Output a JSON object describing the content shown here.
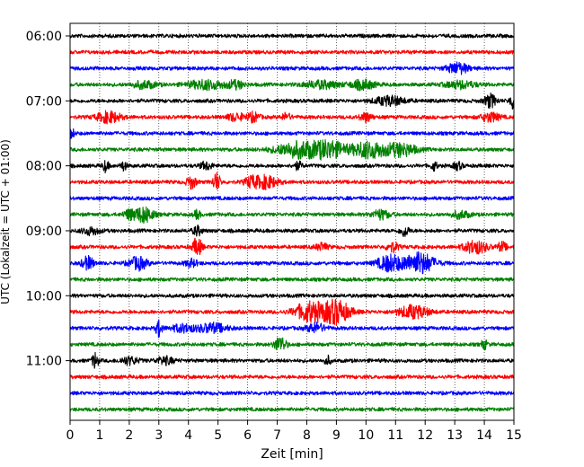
{
  "chart_data": {
    "type": "line",
    "title": "",
    "xlabel": "Zeit  [min]",
    "ylabel": "UTC (Lokalzeit = UTC + 01:00)",
    "xlim": [
      0,
      15
    ],
    "x_ticks": [
      0,
      1,
      2,
      3,
      4,
      5,
      6,
      7,
      8,
      9,
      10,
      11,
      12,
      13,
      14,
      15
    ],
    "x_tick_labels": [
      "0",
      "1",
      "2",
      "3",
      "4",
      "5",
      "6",
      "7",
      "8",
      "9",
      "10",
      "11",
      "12",
      "13",
      "14",
      "15"
    ],
    "y_tick_labels": [
      "06:00",
      "07:00",
      "08:00",
      "09:00",
      "10:00",
      "11:00"
    ],
    "y_tick_rows": [
      0,
      4,
      8,
      12,
      16,
      20
    ],
    "row_count": 24,
    "minutes_per_row": 15,
    "grid": "vertical-dotted",
    "series_colors": [
      "#000000",
      "#ff0000",
      "#0000ff",
      "#008000"
    ],
    "rows": [
      {
        "start": "06:00",
        "color": "#000000",
        "bursts": []
      },
      {
        "start": "06:15",
        "color": "#ff0000",
        "bursts": []
      },
      {
        "start": "06:30",
        "color": "#0000ff",
        "bursts": [
          [
            13.1,
            0.35,
            6
          ]
        ]
      },
      {
        "start": "06:45",
        "color": "#008000",
        "bursts": [
          [
            2.5,
            0.4,
            4
          ],
          [
            4.6,
            0.6,
            5
          ],
          [
            5.6,
            0.3,
            4
          ],
          [
            8.5,
            0.6,
            4
          ],
          [
            9.9,
            0.4,
            5
          ],
          [
            13.2,
            0.5,
            4
          ]
        ]
      },
      {
        "start": "07:00",
        "color": "#000000",
        "bursts": [
          [
            10.8,
            0.5,
            5
          ],
          [
            14.2,
            0.2,
            7
          ],
          [
            14.95,
            0.1,
            8
          ]
        ]
      },
      {
        "start": "07:15",
        "color": "#ff0000",
        "bursts": [
          [
            1.3,
            0.4,
            6
          ],
          [
            5.6,
            0.3,
            4
          ],
          [
            6.2,
            0.2,
            5
          ],
          [
            7.3,
            0.15,
            4
          ],
          [
            10.0,
            0.2,
            5
          ],
          [
            14.2,
            0.3,
            5
          ]
        ]
      },
      {
        "start": "07:30",
        "color": "#0000ff",
        "bursts": [
          [
            0.05,
            0.1,
            5
          ]
        ]
      },
      {
        "start": "07:45",
        "color": "#008000",
        "bursts": [
          [
            7.8,
            0.8,
            9
          ],
          [
            8.8,
            0.5,
            8
          ],
          [
            10.1,
            0.6,
            9
          ],
          [
            11.2,
            0.5,
            7
          ]
        ]
      },
      {
        "start": "08:00",
        "color": "#000000",
        "bursts": [
          [
            1.2,
            0.1,
            6
          ],
          [
            1.8,
            0.1,
            5
          ],
          [
            4.6,
            0.2,
            4
          ],
          [
            7.7,
            0.15,
            4
          ],
          [
            12.3,
            0.1,
            5
          ],
          [
            13.1,
            0.15,
            4
          ]
        ]
      },
      {
        "start": "08:15",
        "color": "#ff0000",
        "bursts": [
          [
            4.1,
            0.15,
            7
          ],
          [
            4.95,
            0.12,
            10
          ],
          [
            6.6,
            0.4,
            7
          ],
          [
            6.1,
            0.2,
            5
          ]
        ]
      },
      {
        "start": "08:30",
        "color": "#0000ff",
        "bursts": []
      },
      {
        "start": "08:45",
        "color": "#008000",
        "bursts": [
          [
            2.5,
            0.3,
            9
          ],
          [
            2.0,
            0.2,
            5
          ],
          [
            4.3,
            0.1,
            5
          ],
          [
            10.5,
            0.3,
            5
          ],
          [
            13.2,
            0.3,
            4
          ]
        ]
      },
      {
        "start": "09:00",
        "color": "#000000",
        "bursts": [
          [
            0.7,
            0.3,
            4
          ],
          [
            4.3,
            0.15,
            5
          ],
          [
            11.3,
            0.15,
            6
          ]
        ]
      },
      {
        "start": "09:15",
        "color": "#ff0000",
        "bursts": [
          [
            4.3,
            0.15,
            10
          ],
          [
            8.5,
            0.2,
            4
          ],
          [
            10.9,
            0.2,
            5
          ],
          [
            13.7,
            0.4,
            7
          ],
          [
            14.6,
            0.15,
            5
          ]
        ]
      },
      {
        "start": "09:30",
        "color": "#0000ff",
        "bursts": [
          [
            0.6,
            0.2,
            7
          ],
          [
            2.3,
            0.3,
            7
          ],
          [
            4.1,
            0.2,
            4
          ],
          [
            10.8,
            0.4,
            9
          ],
          [
            11.8,
            0.5,
            12
          ]
        ]
      },
      {
        "start": "09:45",
        "color": "#008000",
        "bursts": []
      },
      {
        "start": "10:00",
        "color": "#000000",
        "bursts": []
      },
      {
        "start": "10:15",
        "color": "#ff0000",
        "bursts": [
          [
            8.1,
            0.5,
            11
          ],
          [
            9.0,
            0.45,
            13
          ],
          [
            11.6,
            0.5,
            7
          ]
        ]
      },
      {
        "start": "10:30",
        "color": "#0000ff",
        "bursts": [
          [
            3.0,
            0.1,
            9
          ],
          [
            3.8,
            0.4,
            4
          ],
          [
            4.8,
            0.5,
            5
          ],
          [
            8.3,
            0.3,
            5
          ]
        ]
      },
      {
        "start": "10:45",
        "color": "#008000",
        "bursts": [
          [
            7.1,
            0.2,
            8
          ],
          [
            14.0,
            0.1,
            5
          ]
        ]
      },
      {
        "start": "11:00",
        "color": "#000000",
        "bursts": [
          [
            0.85,
            0.1,
            9
          ],
          [
            2.0,
            0.3,
            4
          ],
          [
            3.2,
            0.3,
            4
          ],
          [
            8.7,
            0.1,
            5
          ]
        ]
      },
      {
        "start": "11:15",
        "color": "#ff0000",
        "bursts": []
      },
      {
        "start": "11:30",
        "color": "#0000ff",
        "bursts": []
      },
      {
        "start": "11:45",
        "color": "#008000",
        "bursts": []
      }
    ]
  }
}
